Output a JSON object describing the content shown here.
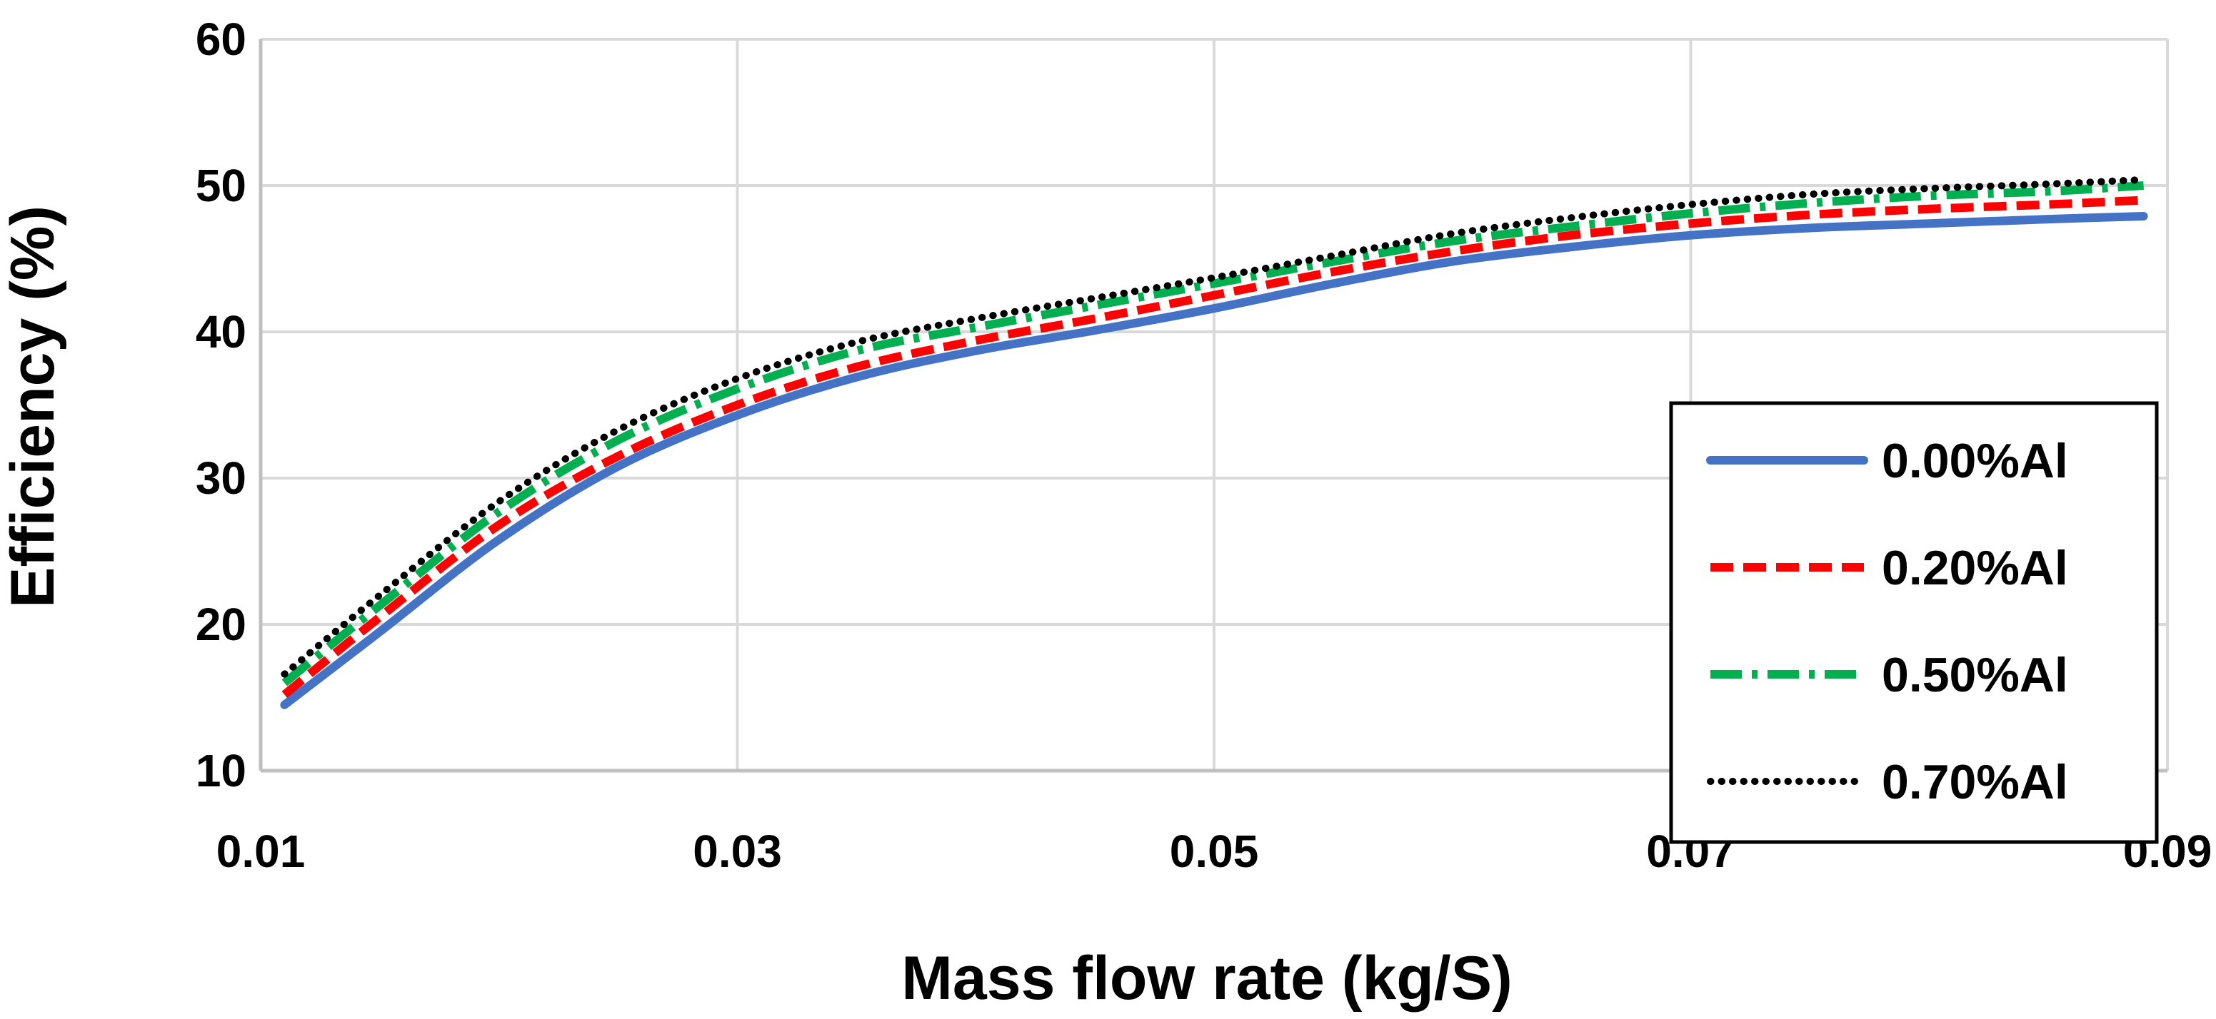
{
  "chart_data": {
    "type": "line",
    "title": "",
    "xlabel": "Mass flow rate (kg/S)",
    "ylabel": "Efficiency (%)",
    "xlim": [
      0.01,
      0.09
    ],
    "ylim": [
      10,
      60
    ],
    "xticks": [
      0.01,
      0.03,
      0.05,
      0.07,
      0.09
    ],
    "xtick_labels": [
      "0.01",
      "0.03",
      "0.05",
      "0.07",
      "0.09"
    ],
    "yticks": [
      10,
      20,
      30,
      40,
      50,
      60
    ],
    "ytick_labels": [
      "10",
      "20",
      "30",
      "40",
      "50",
      "60"
    ],
    "grid": true,
    "legend_position": "right",
    "x": [
      0.011,
      0.015,
      0.02,
      0.025,
      0.03,
      0.035,
      0.04,
      0.045,
      0.05,
      0.055,
      0.06,
      0.065,
      0.07,
      0.075,
      0.08,
      0.085,
      0.089
    ],
    "series": [
      {
        "name": "0.00%Al",
        "color": "#4472C4",
        "style": "solid",
        "values": [
          14.5,
          19.5,
          25.8,
          30.8,
          34.3,
          36.9,
          38.7,
          40.1,
          41.6,
          43.3,
          44.8,
          45.8,
          46.6,
          47.1,
          47.4,
          47.7,
          47.9
        ]
      },
      {
        "name": "0.20%Al",
        "color": "#FF0000",
        "style": "dash",
        "values": [
          15.2,
          20.5,
          26.8,
          31.5,
          35.0,
          37.6,
          39.4,
          40.9,
          42.5,
          44.1,
          45.5,
          46.6,
          47.4,
          48.0,
          48.4,
          48.7,
          49.0
        ]
      },
      {
        "name": "0.50%Al",
        "color": "#00B050",
        "style": "dashdot",
        "values": [
          16.0,
          21.3,
          27.7,
          32.6,
          36.1,
          38.7,
          40.3,
          41.8,
          43.3,
          44.8,
          46.2,
          47.2,
          48.1,
          48.8,
          49.3,
          49.6,
          50.0
        ]
      },
      {
        "name": "0.70%Al",
        "color": "#000000",
        "style": "dot",
        "values": [
          16.6,
          22.0,
          28.4,
          33.3,
          36.8,
          39.3,
          40.9,
          42.3,
          43.7,
          45.2,
          46.7,
          47.8,
          48.7,
          49.4,
          49.8,
          50.1,
          50.4
        ]
      }
    ]
  }
}
